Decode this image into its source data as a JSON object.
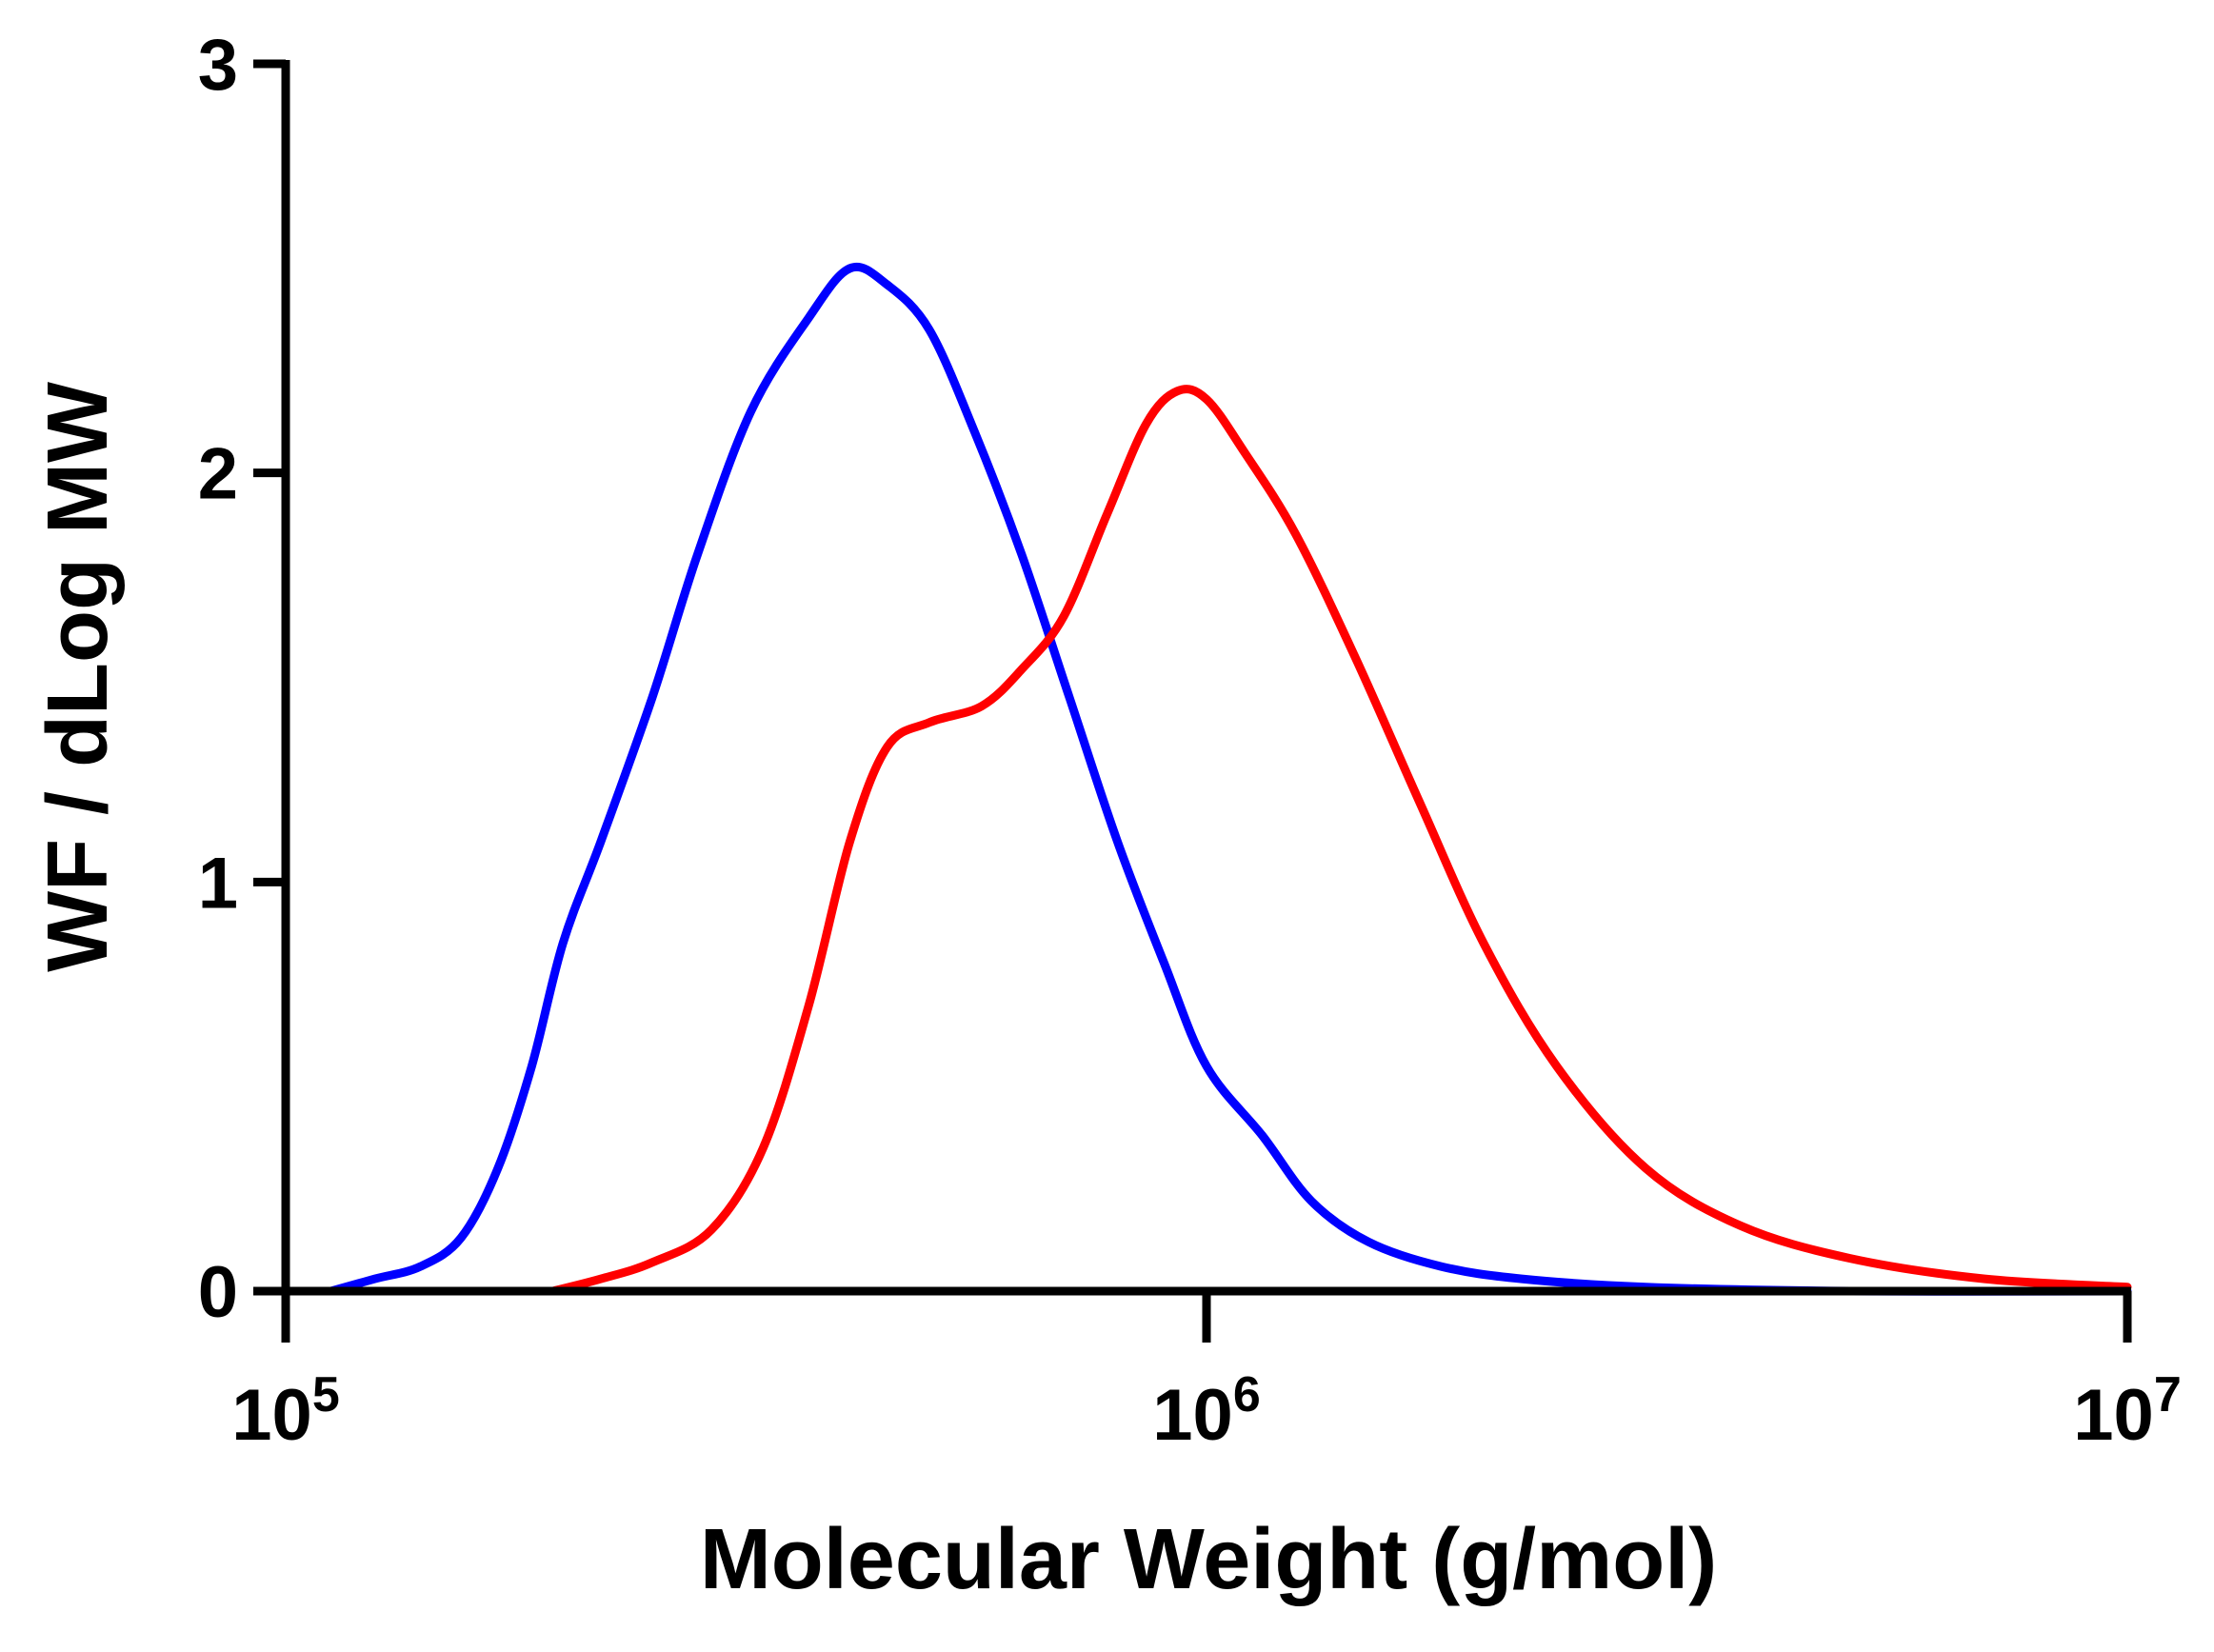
{
  "chart_data": {
    "type": "line",
    "xlabel": "Molecular Weight (g/mol)",
    "ylabel": "WF / dLog MW",
    "xscale": "log",
    "xlim": [
      100000,
      10000000
    ],
    "ylim": [
      0,
      3
    ],
    "grid": false,
    "legend": "none",
    "x_ticks": [
      {
        "value": 100000,
        "base": "10",
        "exp": "5"
      },
      {
        "value": 1000000,
        "base": "10",
        "exp": "6"
      },
      {
        "value": 10000000,
        "base": "10",
        "exp": "7"
      }
    ],
    "y_ticks": [
      "0",
      "1",
      "2",
      "3"
    ],
    "series": [
      {
        "color": "#0000ff",
        "points": [
          [
            112000,
            0.0
          ],
          [
            125000,
            0.03
          ],
          [
            140000,
            0.06
          ],
          [
            155000,
            0.13
          ],
          [
            170000,
            0.3
          ],
          [
            185000,
            0.55
          ],
          [
            200000,
            0.85
          ],
          [
            220000,
            1.1
          ],
          [
            250000,
            1.45
          ],
          [
            280000,
            1.8
          ],
          [
            320000,
            2.15
          ],
          [
            370000,
            2.38
          ],
          [
            410000,
            2.5
          ],
          [
            450000,
            2.46
          ],
          [
            500000,
            2.35
          ],
          [
            560000,
            2.1
          ],
          [
            630000,
            1.8
          ],
          [
            710000,
            1.45
          ],
          [
            800000,
            1.1
          ],
          [
            900000,
            0.8
          ],
          [
            1000000,
            0.55
          ],
          [
            1150000,
            0.38
          ],
          [
            1300000,
            0.22
          ],
          [
            1500000,
            0.12
          ],
          [
            1800000,
            0.06
          ],
          [
            2200000,
            0.03
          ],
          [
            3000000,
            0.01
          ],
          [
            5000000,
            0.0
          ],
          [
            10000000,
            0.0
          ]
        ]
      },
      {
        "color": "#ff0000",
        "points": [
          [
            195000,
            0.0
          ],
          [
            220000,
            0.03
          ],
          [
            250000,
            0.07
          ],
          [
            290000,
            0.15
          ],
          [
            330000,
            0.35
          ],
          [
            370000,
            0.7
          ],
          [
            410000,
            1.1
          ],
          [
            450000,
            1.33
          ],
          [
            500000,
            1.39
          ],
          [
            570000,
            1.43
          ],
          [
            630000,
            1.52
          ],
          [
            700000,
            1.65
          ],
          [
            780000,
            1.9
          ],
          [
            860000,
            2.12
          ],
          [
            930000,
            2.2
          ],
          [
            1000000,
            2.18
          ],
          [
            1100000,
            2.05
          ],
          [
            1250000,
            1.85
          ],
          [
            1450000,
            1.55
          ],
          [
            1700000,
            1.2
          ],
          [
            2000000,
            0.85
          ],
          [
            2400000,
            0.55
          ],
          [
            3000000,
            0.3
          ],
          [
            3800000,
            0.16
          ],
          [
            5000000,
            0.08
          ],
          [
            7000000,
            0.03
          ],
          [
            10000000,
            0.01
          ]
        ]
      }
    ]
  }
}
